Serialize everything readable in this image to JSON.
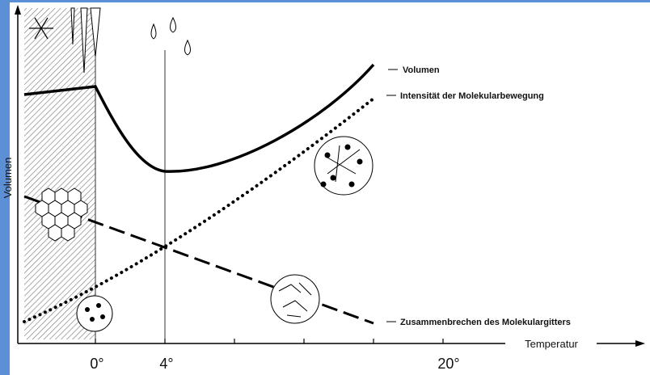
{
  "axes": {
    "y_label": "Volumen",
    "x_label": "Temperatur",
    "x_ticks": [
      "0°",
      "4°",
      "20°"
    ]
  },
  "curves": [
    {
      "label": "Volumen"
    },
    {
      "label": "Intensität der Molekularbewegung"
    },
    {
      "label": "Zusammenbrechen des Molekulargitters"
    }
  ]
}
